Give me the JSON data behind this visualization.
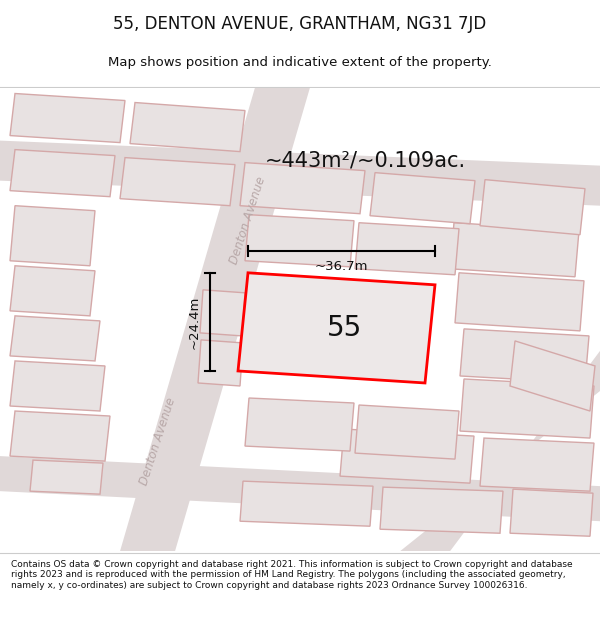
{
  "title": "55, DENTON AVENUE, GRANTHAM, NG31 7JD",
  "subtitle": "Map shows position and indicative extent of the property.",
  "area_text": "~443m²/~0.109ac.",
  "number_label": "55",
  "dim_height": "~24.4m",
  "dim_width": "~36.7m",
  "footer": "Contains OS data © Crown copyright and database right 2021. This information is subject to Crown copyright and database rights 2023 and is reproduced with the permission of HM Land Registry. The polygons (including the associated geometry, namely x, y co-ordinates) are subject to Crown copyright and database rights 2023 Ordnance Survey 100026316.",
  "map_bg": "#f2eeee",
  "road_fill": "#e0d8d8",
  "building_fill": "#e8e2e2",
  "building_edge": "#d4a8a8",
  "plot_edge": "#ff0000",
  "plot_fill": "#ede8e8",
  "street_color": "#c0b0b0",
  "title_color": "#111111",
  "footer_bg": "#ffffff",
  "dim_color": "#111111",
  "area_fontsize": 15,
  "number_fontsize": 20,
  "title_fontsize": 12,
  "subtitle_fontsize": 9.5,
  "footer_fontsize": 6.5
}
